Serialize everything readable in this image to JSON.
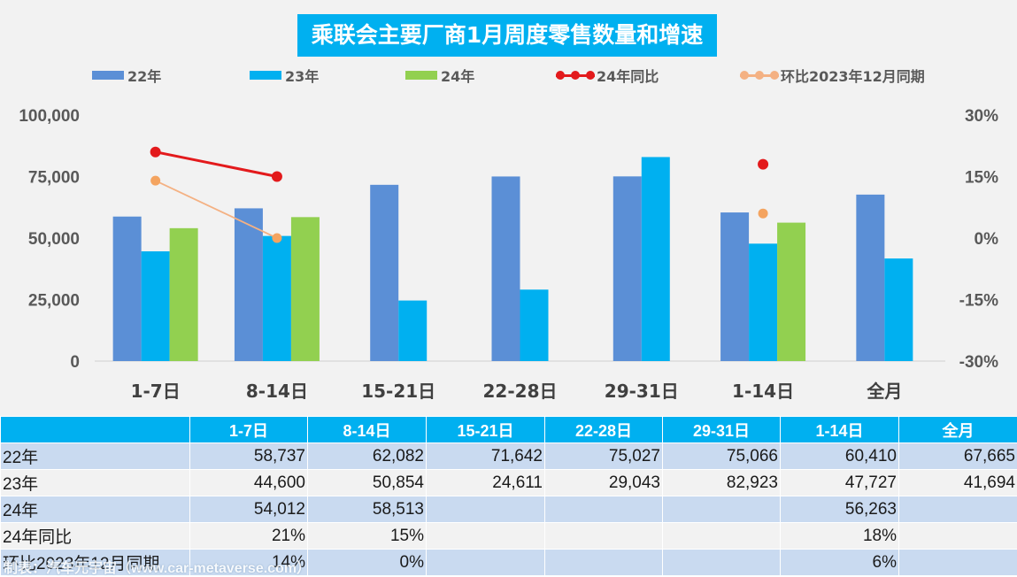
{
  "chart_data": {
    "type": "bar",
    "title": "乘联会主要厂商1月周度零售数量和增速",
    "categories": [
      "1-7日",
      "8-14日",
      "15-21日",
      "22-28日",
      "29-31日",
      "1-14日",
      "全月"
    ],
    "series": [
      {
        "name": "22年",
        "kind": "bar",
        "color": "#5b8fd6",
        "values": [
          58737,
          62082,
          71642,
          75027,
          75066,
          60410,
          67665
        ]
      },
      {
        "name": "23年",
        "kind": "bar",
        "color": "#00b0f0",
        "values": [
          44600,
          50854,
          24611,
          29043,
          82923,
          47727,
          41694
        ]
      },
      {
        "name": "24年",
        "kind": "bar",
        "color": "#92d050",
        "values": [
          54012,
          58513,
          null,
          null,
          null,
          56263,
          null
        ]
      },
      {
        "name": "24年同比",
        "kind": "line",
        "axis": "right",
        "color": "#e31a1c",
        "values": [
          21,
          15,
          null,
          null,
          null,
          18,
          null
        ]
      },
      {
        "name": "环比2023年12月同期",
        "kind": "line",
        "axis": "right",
        "color": "#f4b183",
        "values": [
          14,
          0,
          null,
          null,
          null,
          6,
          null
        ]
      }
    ],
    "y_left": {
      "ylim": [
        0,
        100000
      ],
      "ticks": [
        "100,000",
        "75,000",
        "50,000",
        "25,000",
        "0"
      ]
    },
    "y_right": {
      "ylim": [
        -30,
        30
      ],
      "ticks": [
        "30%",
        "15%",
        "0%",
        "-15%",
        "-30%"
      ]
    },
    "legend_position": "top",
    "grid": false
  },
  "table": {
    "headers": [
      "",
      "1-7日",
      "8-14日",
      "15-21日",
      "22-28日",
      "29-31日",
      "1-14日",
      "全月"
    ],
    "rows": [
      [
        "22年",
        "58,737",
        "62,082",
        "71,642",
        "75,027",
        "75,066",
        "60,410",
        "67,665"
      ],
      [
        "23年",
        "44,600",
        "50,854",
        "24,611",
        "29,043",
        "82,923",
        "47,727",
        "41,694"
      ],
      [
        "24年",
        "54,012",
        "58,513",
        "",
        "",
        "",
        "56,263",
        ""
      ],
      [
        "24年同比",
        "21%",
        "15%",
        "",
        "",
        "",
        "18%",
        ""
      ],
      [
        "环比2023年12月同期",
        "14%",
        "0%",
        "",
        "",
        "",
        "6%",
        ""
      ]
    ]
  },
  "watermark": "制表：汽车元宇宙（www.car-metaverse.com）"
}
